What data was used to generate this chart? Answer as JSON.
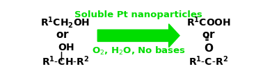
{
  "bg_color": "#ffffff",
  "arrow_color": "#00dd00",
  "text_color_black": "#000000",
  "text_color_green": "#00dd00",
  "label_top": "Soluble Pt nanoparticles",
  "label_bottom": "O$_2$, H$_2$O, No bases",
  "left_line1": "$\\mathbf{R^1CH_2OH}$",
  "left_line2": "\\textbf{or}",
  "left_oh": "OH",
  "left_bar": "|",
  "left_line3": "R$^1$-CH-R$^2$",
  "right_line1": "R$^1$COOH",
  "right_line2": "or",
  "right_o": "O",
  "right_eq": "\\u2016",
  "right_line3": "R$^1$-C-R$^2$",
  "font_size_main": 10,
  "font_size_label": 9.5
}
